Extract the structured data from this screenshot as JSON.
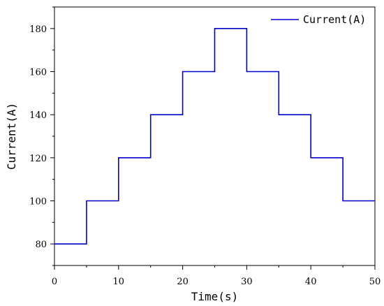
{
  "chart_data": {
    "type": "line",
    "step": "post",
    "xlabel": "Time(s)",
    "ylabel": "Current(A)",
    "xlim": [
      0,
      50
    ],
    "ylim": [
      70,
      190
    ],
    "xticks": [
      0,
      10,
      20,
      30,
      40,
      50
    ],
    "yticks": [
      80,
      100,
      120,
      140,
      160,
      180
    ],
    "grid": false,
    "legend_position": "top-right",
    "series": [
      {
        "name": "Current(A)",
        "color": "#0000cc",
        "x": [
          0,
          5,
          10,
          15,
          20,
          25,
          30,
          35,
          40,
          45,
          50
        ],
        "y": [
          80,
          100,
          120,
          140,
          160,
          180,
          160,
          140,
          120,
          100,
          100
        ]
      }
    ]
  }
}
